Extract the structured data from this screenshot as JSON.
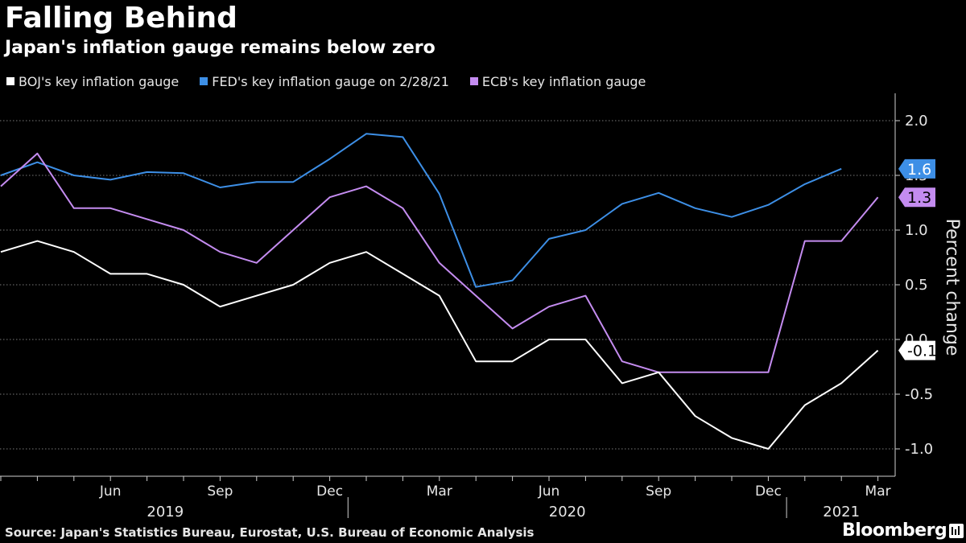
{
  "header": {
    "title": "Falling Behind",
    "subtitle": "Japan's inflation gauge remains below zero"
  },
  "footer": {
    "source": "Source: Japan's Statistics Bureau, Eurostat, U.S. Bureau of Economic Analysis",
    "brand": "Bloomberg"
  },
  "chart_data": {
    "type": "line",
    "ylabel": "Percent change",
    "ylim": [
      -1.25,
      2.25
    ],
    "y_ticks": [
      "2.0",
      "1.5",
      "1.0",
      "0.5",
      "0.0",
      "-0.5",
      "-1.0"
    ],
    "grid": "horizontal dotted",
    "legend_position": "top-left",
    "x_months": [
      "2019-03",
      "2019-04",
      "2019-05",
      "2019-06",
      "2019-07",
      "2019-08",
      "2019-09",
      "2019-10",
      "2019-11",
      "2019-12",
      "2020-01",
      "2020-02",
      "2020-03",
      "2020-04",
      "2020-05",
      "2020-06",
      "2020-07",
      "2020-08",
      "2020-09",
      "2020-10",
      "2020-11",
      "2020-12",
      "2021-01",
      "2021-02",
      "2021-03"
    ],
    "x_tick_labels": [
      {
        "month": "2019-06",
        "label": "Jun"
      },
      {
        "month": "2019-09",
        "label": "Sep"
      },
      {
        "month": "2019-12",
        "label": "Dec"
      },
      {
        "month": "2020-03",
        "label": "Mar"
      },
      {
        "month": "2020-06",
        "label": "Jun"
      },
      {
        "month": "2020-09",
        "label": "Sep"
      },
      {
        "month": "2020-12",
        "label": "Dec"
      },
      {
        "month": "2021-03",
        "label": "Mar"
      }
    ],
    "year_labels": [
      {
        "label": "2019",
        "from": "2019-03",
        "to": "2019-12"
      },
      {
        "label": "2020",
        "from": "2020-01",
        "to": "2020-12"
      },
      {
        "label": "2021",
        "from": "2021-01",
        "to": "2021-03"
      }
    ],
    "series": [
      {
        "name": "BOJ's key inflation gauge",
        "color": "#ffffff",
        "values": [
          0.8,
          0.9,
          0.8,
          0.6,
          0.6,
          0.5,
          0.3,
          0.4,
          0.5,
          0.7,
          0.8,
          0.6,
          0.4,
          -0.2,
          -0.2,
          0.0,
          0.0,
          -0.4,
          -0.3,
          -0.7,
          -0.9,
          -1.0,
          -0.6,
          -0.4,
          -0.1
        ],
        "end_label": "-0.1",
        "label_bg": "#ffffff",
        "label_color": "#000000"
      },
      {
        "name": "FED's key inflation gauge on 2/28/21",
        "color": "#3d8fe6",
        "values": [
          1.5,
          1.62,
          1.5,
          1.46,
          1.53,
          1.52,
          1.39,
          1.44,
          1.44,
          1.65,
          1.88,
          1.85,
          1.33,
          0.48,
          0.54,
          0.92,
          1.0,
          1.24,
          1.34,
          1.2,
          1.12,
          1.23,
          1.42,
          1.56,
          null
        ],
        "end_label": "1.6",
        "label_bg": "#3d8fe6",
        "label_color": "#ffffff"
      },
      {
        "name": "ECB's key inflation gauge",
        "color": "#c48cf0",
        "values": [
          1.4,
          1.7,
          1.2,
          1.2,
          1.1,
          1.0,
          0.8,
          0.7,
          1.0,
          1.3,
          1.4,
          1.2,
          0.7,
          0.4,
          0.1,
          0.3,
          0.4,
          -0.2,
          -0.3,
          -0.3,
          -0.3,
          -0.3,
          0.9,
          0.9,
          1.3
        ],
        "end_label": "1.3",
        "label_bg": "#c48cf0",
        "label_color": "#000000"
      }
    ]
  }
}
